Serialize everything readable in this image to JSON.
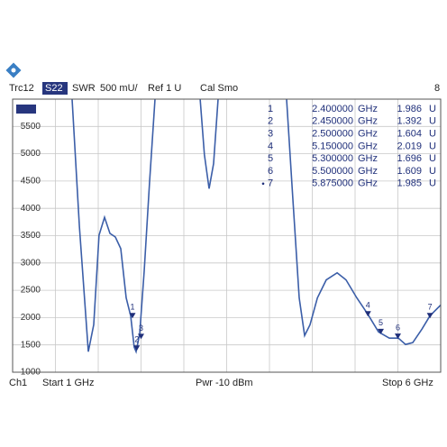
{
  "chart_data": {
    "type": "line",
    "header": {
      "param": "S22",
      "format": "SWR",
      "scale": "500 mU/",
      "ref": "Ref 1 U",
      "cal": "Cal Smo",
      "window": "8"
    },
    "footer": {
      "channel": "Ch1",
      "start": "Start 1 GHz",
      "power": "Pwr -10 dBm",
      "stop": "Stop 6 GHz"
    },
    "x": [
      1.695,
      1.78,
      1.884,
      1.947,
      2.01,
      2.074,
      2.137,
      2.2,
      2.263,
      2.326,
      2.379,
      2.42,
      2.442,
      2.484,
      2.537,
      2.6,
      2.663,
      2.9,
      3.19,
      3.24,
      3.295,
      3.347,
      3.4,
      3.8,
      4.2,
      4.274,
      4.347,
      4.41,
      4.474,
      4.56,
      4.663,
      4.79,
      4.895,
      5.02,
      5.147,
      5.274,
      5.4,
      5.505,
      5.59,
      5.674,
      5.78,
      5.875,
      6.0
    ],
    "series": [
      {
        "name": "Trc12",
        "color": "#3b5ea8",
        "values": [
          6000,
          3670,
          1377,
          1869,
          3508,
          3836,
          3541,
          3475,
          3262,
          2361,
          2033,
          1459,
          1377,
          1705,
          2852,
          4492,
          6000,
          null,
          6000,
          4984,
          4361,
          4820,
          6000,
          null,
          6000,
          4164,
          2361,
          1672,
          1869,
          2361,
          2689,
          2820,
          2689,
          2361,
          2066,
          1738,
          1623,
          1623,
          1508,
          1541,
          1787,
          2033,
          2230
        ]
      }
    ],
    "xlim": [
      1,
      6
    ],
    "xticks": [
      1,
      1.5,
      2,
      2.5,
      3,
      3.5,
      4,
      4.5,
      5,
      5.5,
      6
    ],
    "ylim": [
      1000,
      6000
    ],
    "yticks": [
      1000,
      1500,
      2000,
      2500,
      3000,
      3500,
      4000,
      4500,
      5000,
      5500
    ],
    "grid": true,
    "x_unit": "GHz",
    "y_unit": "U",
    "active_marker": "7",
    "markers": [
      {
        "name": "1",
        "x": {
          "value": 2.4,
          "label": "2.400000"
        },
        "y": {
          "value": 1986,
          "label": "1.986"
        }
      },
      {
        "name": "2",
        "x": {
          "value": 2.45,
          "label": "2.450000"
        },
        "y": {
          "value": 1392,
          "label": "1.392"
        }
      },
      {
        "name": "3",
        "x": {
          "value": 2.5,
          "label": "2.500000"
        },
        "y": {
          "value": 1604,
          "label": "1.604"
        }
      },
      {
        "name": "4",
        "x": {
          "value": 5.15,
          "label": "5.150000"
        },
        "y": {
          "value": 2019,
          "label": "2.019"
        }
      },
      {
        "name": "5",
        "x": {
          "value": 5.3,
          "label": "5.300000"
        },
        "y": {
          "value": 1696,
          "label": "1.696"
        }
      },
      {
        "name": "6",
        "x": {
          "value": 5.5,
          "label": "5.500000"
        },
        "y": {
          "value": 1609,
          "label": "1.609"
        }
      },
      {
        "name": "7",
        "x": {
          "value": 5.875,
          "label": "5.875000"
        },
        "y": {
          "value": 1985,
          "label": "1.985"
        }
      }
    ]
  }
}
